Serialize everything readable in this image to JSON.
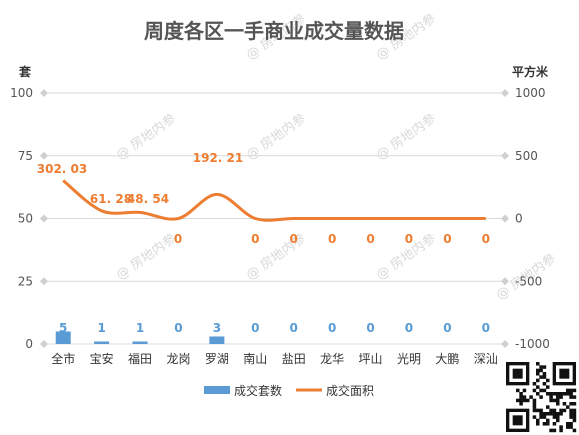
{
  "watermark": "@ 房地内参",
  "chart_data": {
    "type": "bar",
    "title": "周度各区一手商业成交量数据",
    "categories": [
      "全市",
      "宝安",
      "福田",
      "龙岗",
      "罗湖",
      "南山",
      "盐田",
      "龙华",
      "坪山",
      "光明",
      "大鹏",
      "深汕"
    ],
    "y_left": {
      "label": "套",
      "ticks": [
        0,
        25,
        50,
        75,
        100
      ],
      "range": [
        0,
        100
      ]
    },
    "y_right": {
      "label": "平方米",
      "ticks": [
        -1000,
        -500,
        0,
        500,
        1000
      ],
      "range": [
        -1000,
        1000
      ]
    },
    "series": [
      {
        "name": "成交套数",
        "type": "bar",
        "axis": "left",
        "color": "#5b9bd5",
        "values": [
          5,
          1,
          1,
          0,
          3,
          0,
          0,
          0,
          0,
          0,
          0,
          0
        ],
        "labels": [
          "5",
          "1",
          "1",
          "0",
          "3",
          "0",
          "0",
          "0",
          "0",
          "0",
          "0",
          "0"
        ]
      },
      {
        "name": "成交面积",
        "type": "line",
        "axis": "right",
        "color": "#ed7d31",
        "values": [
          302.03,
          61.28,
          48.54,
          0,
          192.21,
          0,
          0,
          0,
          0,
          0,
          0,
          0
        ],
        "labels": [
          "302. 03",
          "61. 28",
          "48. 54",
          "0",
          "192. 21",
          "0",
          "0",
          "0",
          "0",
          "0",
          "0",
          "0"
        ]
      }
    ],
    "grid": true,
    "legend_position": "bottom"
  }
}
